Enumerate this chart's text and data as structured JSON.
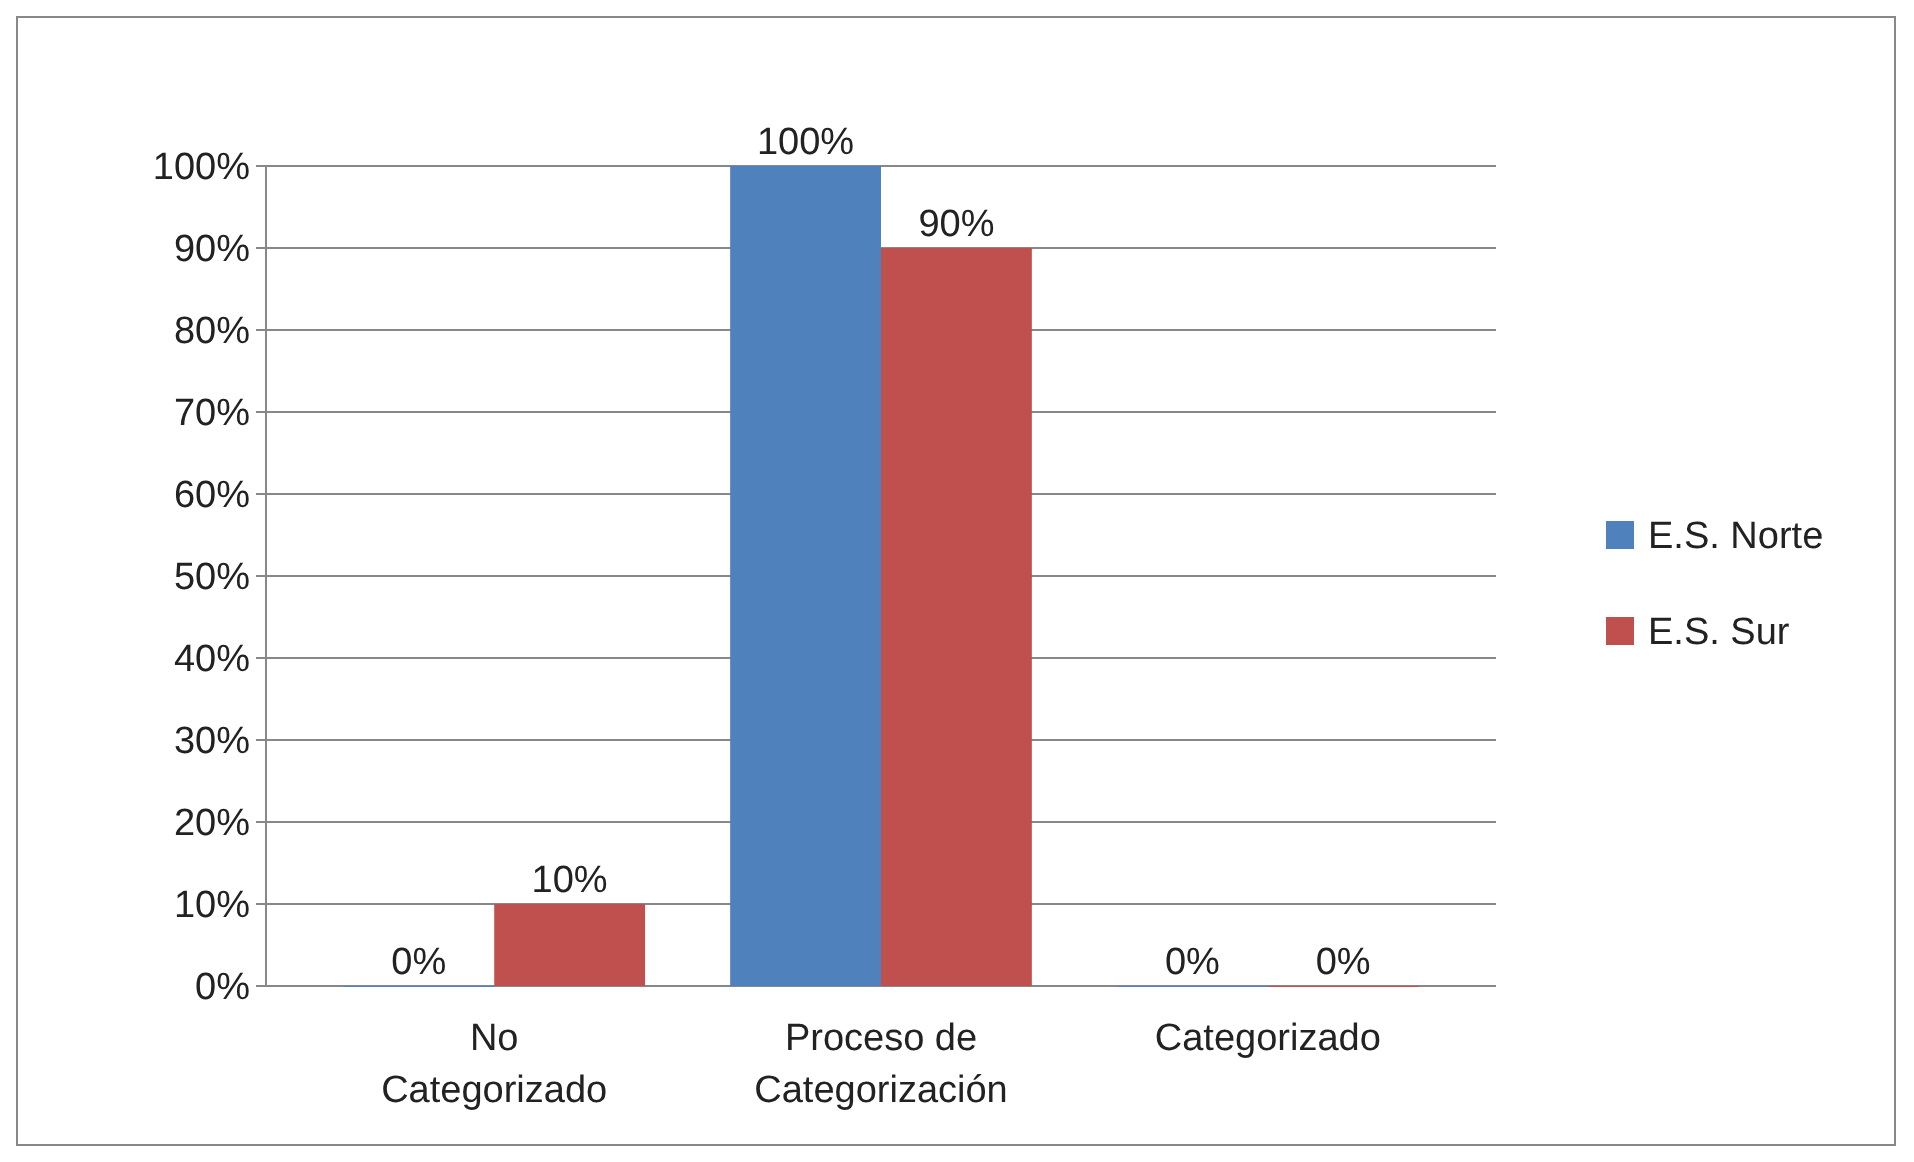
{
  "chart_data": {
    "type": "bar",
    "categories": [
      "No Categorizado",
      "Proceso de Categorización",
      "Categorizado"
    ],
    "series": [
      {
        "name": "E.S. Norte",
        "color": "#4f81bd",
        "values": [
          0,
          100,
          0
        ],
        "value_labels": [
          "0%",
          "100%",
          "0%"
        ]
      },
      {
        "name": "E.S. Sur",
        "color": "#c0504d",
        "values": [
          10,
          90,
          0
        ],
        "value_labels": [
          "10%",
          "90%",
          "0%"
        ]
      }
    ],
    "ylim": [
      0,
      100
    ],
    "yticks": [
      {
        "value": 0,
        "label": "0%"
      },
      {
        "value": 10,
        "label": "10%"
      },
      {
        "value": 20,
        "label": "20%"
      },
      {
        "value": 30,
        "label": "30%"
      },
      {
        "value": 40,
        "label": "40%"
      },
      {
        "value": 50,
        "label": "50%"
      },
      {
        "value": 60,
        "label": "60%"
      },
      {
        "value": 70,
        "label": "70%"
      },
      {
        "value": 80,
        "label": "80%"
      },
      {
        "value": 90,
        "label": "90%"
      },
      {
        "value": 100,
        "label": "100%"
      }
    ],
    "grid": "y",
    "legend": "right"
  }
}
